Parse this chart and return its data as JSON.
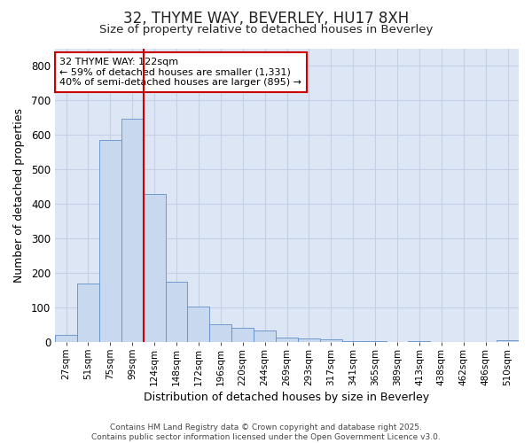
{
  "title1": "32, THYME WAY, BEVERLEY, HU17 8XH",
  "title2": "Size of property relative to detached houses in Beverley",
  "xlabel": "Distribution of detached houses by size in Beverley",
  "ylabel": "Number of detached properties",
  "categories": [
    "27sqm",
    "51sqm",
    "75sqm",
    "99sqm",
    "124sqm",
    "148sqm",
    "172sqm",
    "196sqm",
    "220sqm",
    "244sqm",
    "269sqm",
    "293sqm",
    "317sqm",
    "341sqm",
    "365sqm",
    "389sqm",
    "413sqm",
    "438sqm",
    "462sqm",
    "486sqm",
    "510sqm"
  ],
  "values": [
    20,
    170,
    585,
    648,
    430,
    175,
    103,
    52,
    40,
    33,
    14,
    10,
    7,
    3,
    3,
    1,
    2,
    0,
    0,
    0,
    5
  ],
  "bar_color": "#c8d8ee",
  "bar_edge_color": "#6090c8",
  "grid_color": "#c5d0e5",
  "plot_bg_color": "#dde6f5",
  "fig_bg_color": "#ffffff",
  "vline_color": "#cc0000",
  "annotation_title": "32 THYME WAY: 122sqm",
  "annotation_line1": "← 59% of detached houses are smaller (1,331)",
  "annotation_line2": "40% of semi-detached houses are larger (895) →",
  "annotation_box_facecolor": "#ffffff",
  "annotation_box_edgecolor": "#cc0000",
  "footer_line1": "Contains HM Land Registry data © Crown copyright and database right 2025.",
  "footer_line2": "Contains public sector information licensed under the Open Government Licence v3.0.",
  "ylim": [
    0,
    850
  ],
  "yticks": [
    0,
    100,
    200,
    300,
    400,
    500,
    600,
    700,
    800
  ],
  "vline_bar_idx": 4
}
